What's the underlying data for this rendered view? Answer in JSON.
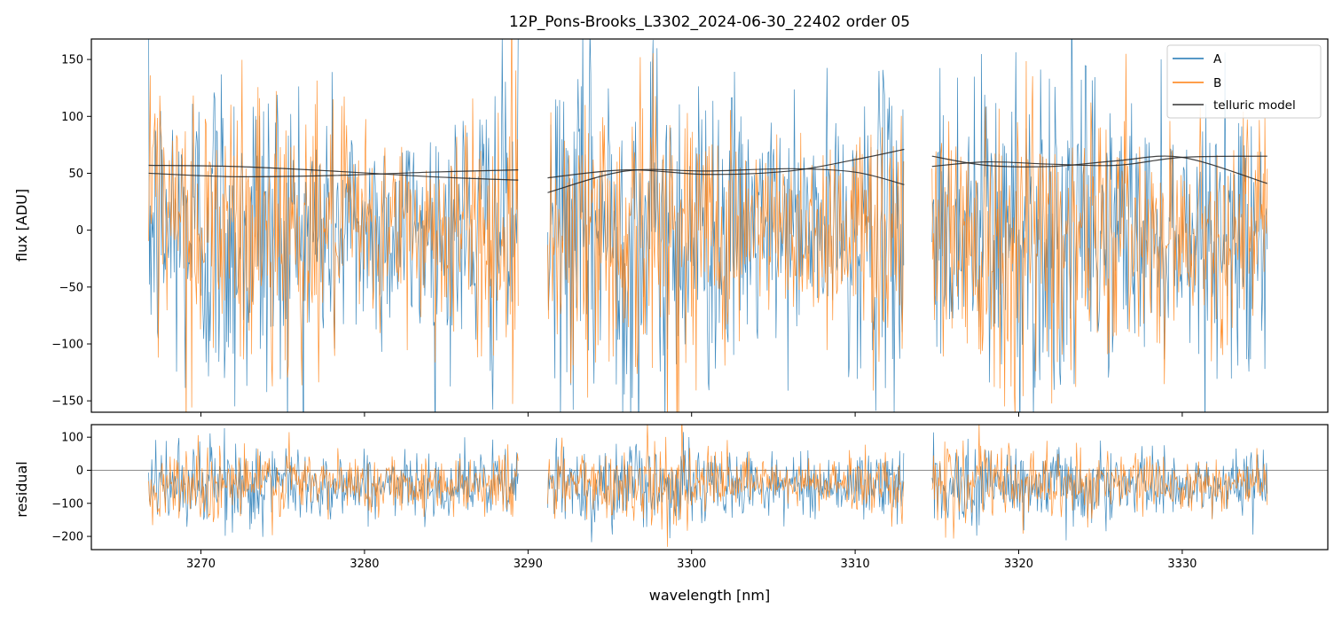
{
  "chart_data": {
    "type": "line",
    "title": "12P_Pons-Brooks_L3302_2024-06-30_22402  order 05",
    "xlabel": "wavelength [nm]",
    "xlim": [
      3263.3,
      3338.9
    ],
    "x_ticks": [
      3270,
      3280,
      3290,
      3300,
      3310,
      3320,
      3330
    ],
    "colors": {
      "A": "#1f77b4",
      "B": "#ff7f0e",
      "telluric": "#000000"
    },
    "legend_position": "top-right",
    "segments": [
      [
        3266.8,
        3289.4
      ],
      [
        3291.2,
        3313.0
      ],
      [
        3314.7,
        3335.2
      ]
    ],
    "panels": [
      {
        "name": "flux",
        "ylabel": "flux [ADU]",
        "ylim": [
          -160,
          168
        ],
        "y_ticks": [
          -150,
          -100,
          -50,
          0,
          50,
          100,
          150
        ],
        "series": [
          {
            "name": "A",
            "noise_center": 0,
            "noise_sd": 65
          },
          {
            "name": "B",
            "noise_center": 0,
            "noise_sd": 55
          },
          {
            "name": "telluric model",
            "curves": [
              {
                "x": [
                  3266.8,
                  3272,
                  3278,
                  3284,
                  3289.4
                ],
                "y": [
                  57,
                  56,
                  52,
                  47,
                  44
                ]
              },
              {
                "x": [
                  3266.8,
                  3272,
                  3278,
                  3284,
                  3289.4
                ],
                "y": [
                  50,
                  47,
                  48,
                  51,
                  53
                ]
              },
              {
                "x": [
                  3291.2,
                  3296,
                  3301,
                  3306,
                  3310,
                  3313.0
                ],
                "y": [
                  33,
                  52,
                  52,
                  54,
                  51,
                  40
                ]
              },
              {
                "x": [
                  3291.2,
                  3296,
                  3301,
                  3306,
                  3310,
                  3313.0
                ],
                "y": [
                  46,
                  53,
                  49,
                  52,
                  62,
                  71
                ]
              },
              {
                "x": [
                  3314.7,
                  3318,
                  3322,
                  3326,
                  3330,
                  3335.2
                ],
                "y": [
                  65,
                  57,
                  56,
                  61,
                  64,
                  41
                ]
              },
              {
                "x": [
                  3314.7,
                  3318,
                  3322,
                  3326,
                  3330,
                  3335.2
                ],
                "y": [
                  56,
                  60,
                  58,
                  57,
                  64,
                  65
                ]
              }
            ]
          }
        ]
      },
      {
        "name": "residual",
        "ylabel": "residual",
        "ylim": [
          -240,
          138
        ],
        "y_ticks": [
          -200,
          -100,
          0,
          100
        ],
        "zero_line": 0,
        "series": [
          {
            "name": "A",
            "noise_center": -45,
            "noise_sd": 55
          },
          {
            "name": "B",
            "noise_center": -40,
            "noise_sd": 50
          }
        ]
      }
    ],
    "legend": [
      {
        "label": "A",
        "color": "#1f77b4"
      },
      {
        "label": "B",
        "color": "#ff7f0e"
      },
      {
        "label": "telluric model",
        "color": "#333333"
      }
    ]
  }
}
